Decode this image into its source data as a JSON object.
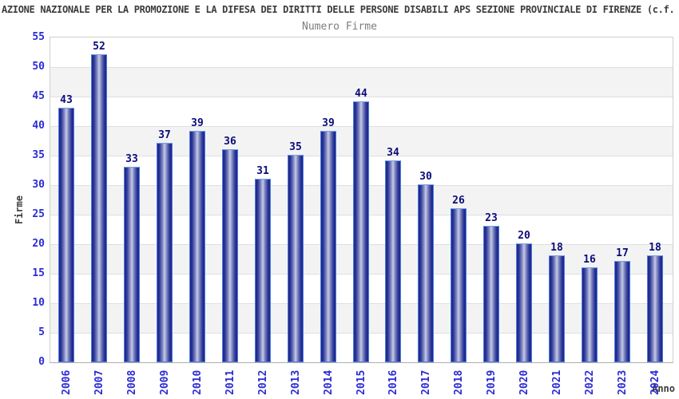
{
  "header": {
    "title": "AZIONE NAZIONALE PER LA PROMOZIONE E LA DIFESA DEI DIRITTI DELLE PERSONE DISABILI APS SEZIONE PROVINCIALE DI FIRENZE (c.f.",
    "subtitle": "Numero Firme"
  },
  "chart_data": {
    "type": "bar",
    "title": "Numero Firme",
    "categories": [
      "2006",
      "2007",
      "2008",
      "2009",
      "2010",
      "2011",
      "2012",
      "2013",
      "2014",
      "2015",
      "2016",
      "2017",
      "2018",
      "2019",
      "2020",
      "2021",
      "2022",
      "2023",
      "2024"
    ],
    "values": [
      43,
      52,
      33,
      37,
      39,
      36,
      31,
      35,
      39,
      44,
      34,
      30,
      26,
      23,
      20,
      18,
      16,
      17,
      18
    ],
    "xlabel": "Anno",
    "ylabel": "Firme",
    "ylim": [
      0,
      55
    ],
    "yticks": [
      0,
      5,
      10,
      15,
      20,
      25,
      30,
      35,
      40,
      45,
      50,
      55
    ],
    "grid": true,
    "legend": "none",
    "colors": {
      "bar_dark": "#1d2688",
      "bar_light": "#c7cbe6",
      "bar_outline": "#4a7de0",
      "tick_label": "#2b2bd4",
      "value_label": "#0c0c7a",
      "band_gray": "#f3f3f3",
      "gridline": "#dfdfdf",
      "title_text": "#3c3c3c",
      "subtitle_text": "#7d7d7d"
    }
  }
}
